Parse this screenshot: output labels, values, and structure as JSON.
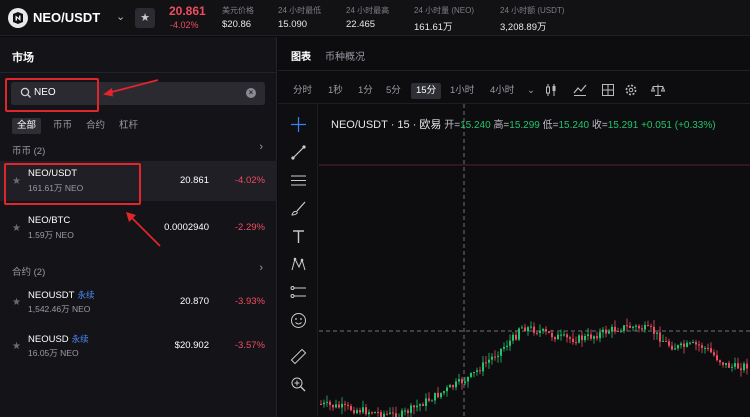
{
  "header": {
    "pair": "NEO/USDT",
    "last_price": "20.861",
    "change_pct": "-4.02%",
    "stats": [
      {
        "label": "美元价格",
        "value": "$20.86"
      },
      {
        "label": "24 小时最低",
        "value": "15.090"
      },
      {
        "label": "24 小时最高",
        "value": "22.465"
      },
      {
        "label": "24 小时量 (NEO)",
        "value": "161.61万"
      },
      {
        "label": "24 小时额 (USDT)",
        "value": "3,208.89万"
      }
    ]
  },
  "market": {
    "title": "市场",
    "search_value": "NEO",
    "filters": [
      "全部",
      "币币",
      "合约",
      "杠杆"
    ],
    "spot_section": "币币 (2)",
    "contract_section": "合约 (2)",
    "spot_rows": [
      {
        "name": "NEO/USDT",
        "tag": "",
        "volume": "161.61万 NEO",
        "price": "20.861",
        "change": "-4.02%"
      },
      {
        "name": "NEO/BTC",
        "tag": "",
        "volume": "1.59万 NEO",
        "price": "0.0002940",
        "change": "-2.29%"
      }
    ],
    "contract_rows": [
      {
        "name": "NEOUSDT",
        "tag": "永续",
        "volume": "1,542.46万 NEO",
        "price": "20.870",
        "change": "-3.93%"
      },
      {
        "name": "NEOUSD",
        "tag": "永续",
        "volume": "16.05万 NEO",
        "price": "$20.902",
        "change": "-3.57%"
      }
    ]
  },
  "chart": {
    "tabs": [
      "图表",
      "币种概况"
    ],
    "timeframes": [
      "分时",
      "1秒",
      "1分",
      "5分",
      "15分",
      "1小时",
      "4小时"
    ],
    "active_timeframe": "15分",
    "ohlc": {
      "title": "NEO/USDT · 15 · 欧易",
      "open_label": "开=",
      "open": "15.240",
      "high_label": "高=",
      "high": "15.299",
      "low_label": "低=",
      "low": "15.240",
      "close_label": "收=",
      "close": "15.291",
      "change": "+0.051 (+0.33%)"
    },
    "colors": {
      "up": "#23c26b",
      "down": "#ef4d5f"
    }
  }
}
